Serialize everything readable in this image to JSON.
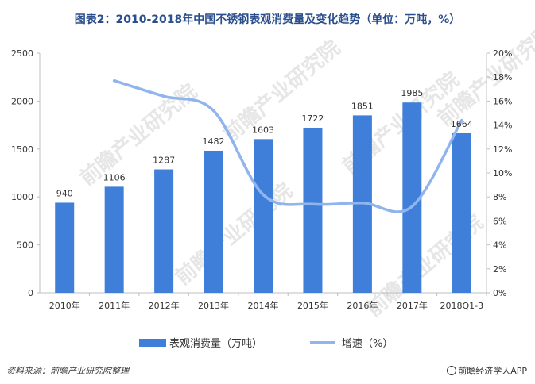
{
  "title": "图表2：2010-2018年中国不锈钢表观消费量及变化趋势（单位：万吨，%）",
  "watermark": "前瞻产业研究院",
  "footer": {
    "source": "资料来源：前瞻产业研究院整理",
    "brand": "前瞻经济学人APP"
  },
  "colors": {
    "bar": "#3f7fd9",
    "line": "#8fb5ec",
    "axis": "#bfbfbf"
  },
  "chart_data": {
    "type": "bar",
    "categories": [
      "2010年",
      "2011年",
      "2012年",
      "2013年",
      "2014年",
      "2015年",
      "2016年",
      "2017年",
      "2018Q1-3"
    ],
    "series": [
      {
        "name": "表观消费量（万吨）",
        "type": "bar",
        "axis": "left",
        "values": [
          940,
          1106,
          1287,
          1482,
          1603,
          1722,
          1851,
          1985,
          1664
        ]
      },
      {
        "name": "增速（%）",
        "type": "line",
        "axis": "right",
        "values": [
          null,
          17.7,
          16.4,
          15.2,
          8.2,
          7.4,
          7.5,
          7.2,
          14.4
        ]
      }
    ],
    "left_axis": {
      "min": 0,
      "max": 2500,
      "ticks": [
        0,
        500,
        1000,
        1500,
        2000,
        2500
      ]
    },
    "right_axis": {
      "min": 0,
      "max": 20,
      "ticks": [
        "0%",
        "2%",
        "4%",
        "6%",
        "8%",
        "10%",
        "12%",
        "14%",
        "16%",
        "18%",
        "20%"
      ]
    },
    "legend_position": "bottom",
    "grid": false
  }
}
